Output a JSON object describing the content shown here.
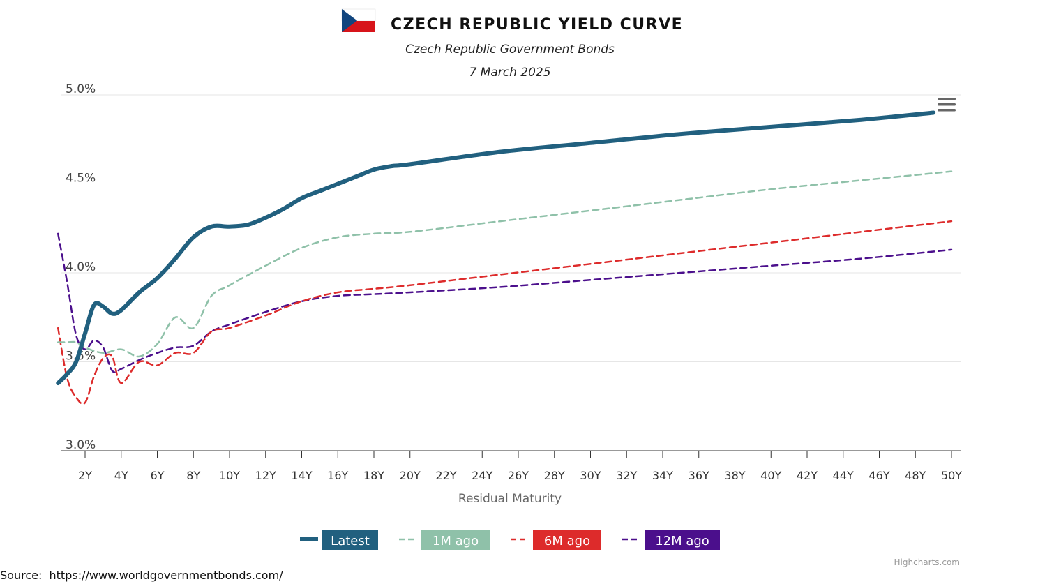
{
  "header": {
    "title": "CZECH REPUBLIC YIELD CURVE",
    "subtitle": "Czech Republic Government Bonds",
    "date": "7 March 2025"
  },
  "flag": {
    "icon": "czech-flag-icon",
    "colors": {
      "white": "#ffffff",
      "red": "#d7141a",
      "blue": "#11457e"
    }
  },
  "menu": {
    "icon": "hamburger-menu-icon"
  },
  "credits": "Highcharts.com",
  "source": "Source:  https://www.worldgovernmentbonds.com/",
  "chart_data": {
    "type": "line",
    "title": "CZECH REPUBLIC YIELD CURVE",
    "subtitle": "Czech Republic Government Bonds",
    "xlabel": "Residual Maturity",
    "ylabel": "",
    "xlim": [
      0.6,
      50.2
    ],
    "ylim": [
      3.0,
      5.0
    ],
    "x_ticks": [
      "2Y",
      "4Y",
      "6Y",
      "8Y",
      "10Y",
      "12Y",
      "14Y",
      "16Y",
      "18Y",
      "20Y",
      "22Y",
      "24Y",
      "26Y",
      "28Y",
      "30Y",
      "32Y",
      "34Y",
      "36Y",
      "38Y",
      "40Y",
      "42Y",
      "44Y",
      "46Y",
      "48Y",
      "50Y"
    ],
    "y_ticks": [
      "3.0%",
      "3.5%",
      "4.0%",
      "4.5%",
      "5.0%"
    ],
    "grid": true,
    "legend_position": "bottom-center",
    "series": [
      {
        "name": "Latest",
        "color": "#21607f",
        "style": "solid",
        "x": [
          0.5,
          1,
          1.5,
          2,
          2.5,
          3,
          3.5,
          4,
          5,
          6,
          7,
          8,
          9,
          10,
          11,
          12,
          13,
          14,
          15,
          16,
          17,
          18,
          19,
          20,
          25,
          30,
          35,
          40,
          45,
          49
        ],
        "y": [
          3.38,
          3.43,
          3.5,
          3.66,
          3.82,
          3.81,
          3.77,
          3.79,
          3.89,
          3.97,
          4.08,
          4.2,
          4.26,
          4.26,
          4.27,
          4.31,
          4.36,
          4.42,
          4.46,
          4.5,
          4.54,
          4.58,
          4.6,
          4.61,
          4.68,
          4.73,
          4.78,
          4.82,
          4.86,
          4.9
        ]
      },
      {
        "name": "1M ago",
        "color": "#8fc1a9",
        "style": "dash",
        "x": [
          0.5,
          1,
          1.5,
          2,
          3,
          4,
          5,
          6,
          7,
          8,
          9,
          10,
          12,
          14,
          16,
          18,
          20,
          25,
          30,
          35,
          40,
          45,
          50
        ],
        "y": [
          3.61,
          3.61,
          3.61,
          3.58,
          3.55,
          3.57,
          3.53,
          3.6,
          3.75,
          3.69,
          3.87,
          3.93,
          4.04,
          4.14,
          4.2,
          4.22,
          4.23,
          4.29,
          4.35,
          4.41,
          4.47,
          4.52,
          4.57
        ]
      },
      {
        "name": "6M ago",
        "color": "#dd2b2b",
        "style": "dash",
        "x": [
          0.5,
          1,
          1.5,
          2,
          2.5,
          3,
          3.5,
          4,
          5,
          6,
          7,
          8,
          9,
          10,
          12,
          14,
          16,
          18,
          20,
          25,
          30,
          35,
          40,
          45,
          50
        ],
        "y": [
          3.69,
          3.41,
          3.3,
          3.27,
          3.42,
          3.52,
          3.53,
          3.38,
          3.5,
          3.48,
          3.55,
          3.55,
          3.67,
          3.69,
          3.76,
          3.84,
          3.89,
          3.91,
          3.93,
          3.99,
          4.05,
          4.11,
          4.17,
          4.23,
          4.29
        ]
      },
      {
        "name": "12M ago",
        "color": "#4b0f8c",
        "style": "dash",
        "x": [
          0.5,
          1,
          1.5,
          2,
          2.5,
          3,
          3.5,
          4,
          5,
          6,
          7,
          8,
          9,
          10,
          12,
          14,
          16,
          18,
          20,
          25,
          30,
          35,
          40,
          45,
          50
        ],
        "y": [
          4.22,
          3.95,
          3.65,
          3.57,
          3.62,
          3.58,
          3.45,
          3.46,
          3.51,
          3.55,
          3.58,
          3.59,
          3.67,
          3.71,
          3.78,
          3.84,
          3.87,
          3.88,
          3.89,
          3.92,
          3.96,
          4.0,
          4.04,
          4.08,
          4.13
        ]
      }
    ]
  }
}
